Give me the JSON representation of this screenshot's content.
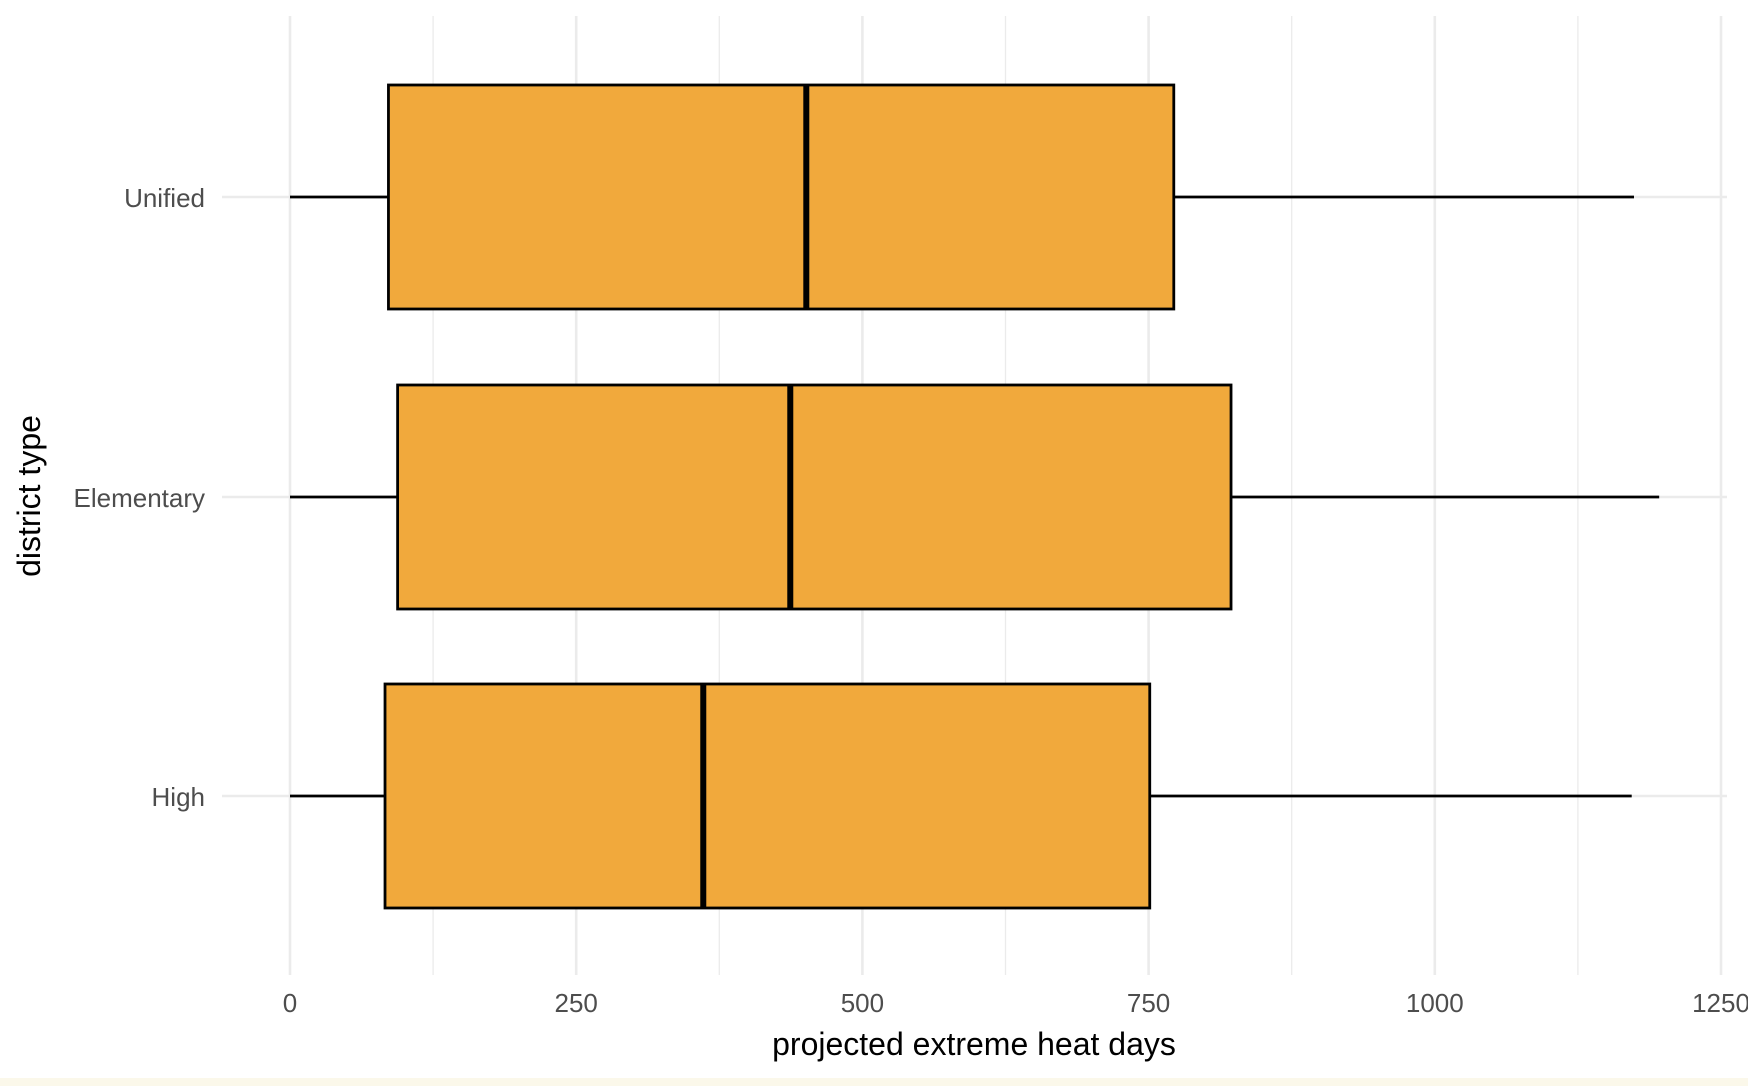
{
  "chart_data": {
    "type": "boxplot",
    "orientation": "horizontal",
    "title": "",
    "xlabel": "projected extreme heat days",
    "ylabel": "district type",
    "xlim": [
      0,
      1250
    ],
    "x_ticks": [
      0,
      250,
      500,
      750,
      1000,
      1250
    ],
    "x_tick_labels": [
      "0",
      "250",
      "500",
      "750",
      "1000",
      "1250"
    ],
    "categories": [
      "Unified",
      "Elementary",
      "High"
    ],
    "series": [
      {
        "category": "Unified",
        "min": 0,
        "q1": 86,
        "median": 451,
        "q3": 772,
        "max": 1174
      },
      {
        "category": "Elementary",
        "min": 0,
        "q1": 94,
        "median": 437,
        "q3": 822,
        "max": 1196
      },
      {
        "category": "High",
        "min": 0,
        "q1": 83,
        "median": 361,
        "q3": 751,
        "max": 1172
      }
    ],
    "box_fill": "#F1A93C",
    "line_color": "#000000",
    "grid": true,
    "grid_color": "#EBEBEB",
    "tick_label_color": "#4D4D4D",
    "axis_title_color": "#000000",
    "legend": "none"
  }
}
